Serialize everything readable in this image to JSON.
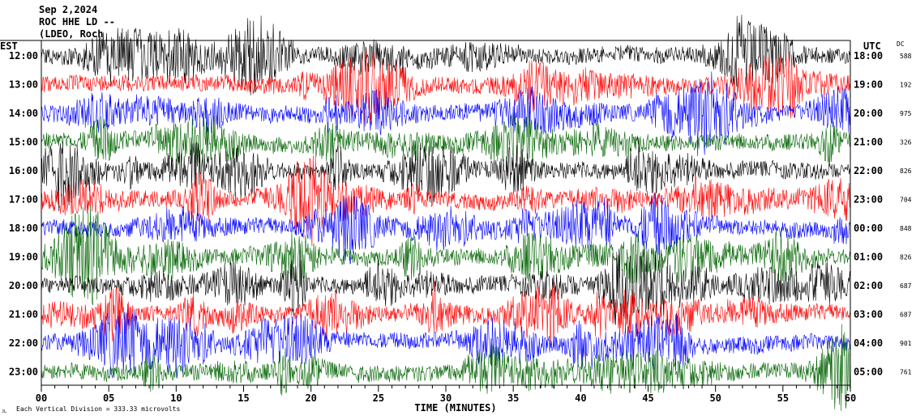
{
  "header": {
    "date": "Sep 2,2024",
    "station": "ROC HHE LD --",
    "network": "(LDEO, Roch"
  },
  "left_axis_label": "EST",
  "right_axis_label": "UTC",
  "dc_label": "DC",
  "footer_note": "Each Vertical Division = 333.33 microvolts",
  "footer_mark": "JL",
  "colors": {
    "trace_cycle": [
      "#000000",
      "#ff0000",
      "#0000ff",
      "#006400"
    ],
    "axis": "#000000",
    "background": "#ffffff"
  },
  "chart_data": {
    "type": "line",
    "title": "",
    "xlabel": "TIME (MINUTES)",
    "ylabel": "",
    "xlim": [
      0,
      60
    ],
    "x_ticks": [
      "00",
      "05",
      "10",
      "15",
      "20",
      "25",
      "30",
      "35",
      "40",
      "45",
      "50",
      "55",
      "60"
    ],
    "rows": [
      {
        "est": "12:00",
        "utc": "18:00",
        "dc": "588"
      },
      {
        "est": "13:00",
        "utc": "19:00",
        "dc": "192"
      },
      {
        "est": "14:00",
        "utc": "20:00",
        "dc": "975"
      },
      {
        "est": "15:00",
        "utc": "21:00",
        "dc": "326"
      },
      {
        "est": "16:00",
        "utc": "22:00",
        "dc": "826"
      },
      {
        "est": "17:00",
        "utc": "23:00",
        "dc": "704"
      },
      {
        "est": "18:00",
        "utc": "00:00",
        "dc": "848"
      },
      {
        "est": "19:00",
        "utc": "01:00",
        "dc": "826"
      },
      {
        "est": "20:00",
        "utc": "02:00",
        "dc": "687"
      },
      {
        "est": "21:00",
        "utc": "03:00",
        "dc": "687"
      },
      {
        "est": "22:00",
        "utc": "04:00",
        "dc": "901"
      },
      {
        "est": "23:00",
        "utc": "05:00",
        "dc": "761"
      }
    ]
  }
}
